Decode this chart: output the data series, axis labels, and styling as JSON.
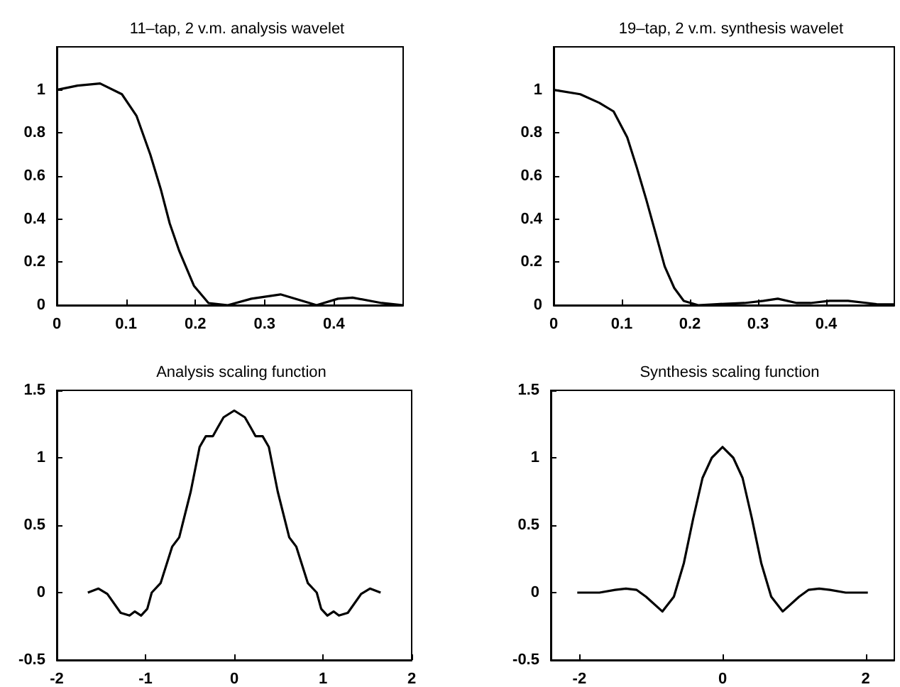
{
  "chart_data": [
    {
      "type": "line",
      "title": "11–tap, 2 v.m. analysis wavelet",
      "x": [
        0,
        0.03,
        0.0625,
        0.094,
        0.115,
        0.135,
        0.15,
        0.163,
        0.177,
        0.198,
        0.219,
        0.247,
        0.281,
        0.323,
        0.365,
        0.375,
        0.406,
        0.427,
        0.469,
        0.5
      ],
      "series": [
        {
          "color": "#000000",
          "values": [
            1,
            1.02,
            1.03,
            0.98,
            0.88,
            0.7,
            0.54,
            0.38,
            0.25,
            0.09,
            0.01,
            0,
            0.03,
            0.05,
            0.01,
            0,
            0.03,
            0.035,
            0.01,
            0
          ]
        }
      ],
      "xlim": [
        0,
        0.5
      ],
      "ylim": [
        0,
        1.2
      ],
      "xticks": [
        0,
        0.1,
        0.2,
        0.3,
        0.4
      ],
      "yticks": [
        0,
        0.2,
        0.4,
        0.6,
        0.8,
        1
      ],
      "grid": false
    },
    {
      "type": "line",
      "title": "19–tap, 2 v.m. synthesis wavelet",
      "x": [
        0,
        0.039,
        0.067,
        0.088,
        0.108,
        0.122,
        0.136,
        0.15,
        0.163,
        0.177,
        0.191,
        0.212,
        0.24,
        0.28,
        0.308,
        0.329,
        0.357,
        0.377,
        0.405,
        0.432,
        0.474,
        0.5
      ],
      "series": [
        {
          "color": "#000000",
          "values": [
            1,
            0.98,
            0.94,
            0.9,
            0.78,
            0.64,
            0.49,
            0.33,
            0.18,
            0.08,
            0.02,
            0,
            0.005,
            0.01,
            0.02,
            0.03,
            0.01,
            0.01,
            0.02,
            0.02,
            0.005,
            0.004
          ]
        }
      ],
      "xlim": [
        0,
        0.5
      ],
      "ylim": [
        0,
        1.2
      ],
      "xticks": [
        0,
        0.1,
        0.2,
        0.3,
        0.4
      ],
      "yticks": [
        0,
        0.2,
        0.4,
        0.6,
        0.8,
        1
      ],
      "grid": false
    },
    {
      "type": "line",
      "title": "Analysis scaling function",
      "x": [
        -1.65,
        -1.53,
        -1.43,
        -1.28,
        -1.18,
        -1.12,
        -1.05,
        -0.98,
        -0.93,
        -0.83,
        -0.7,
        -0.62,
        -0.49,
        -0.39,
        -0.32,
        -0.24,
        -0.19,
        -0.12,
        0,
        0.12,
        0.19,
        0.24,
        0.32,
        0.39,
        0.49,
        0.62,
        0.7,
        0.83,
        0.93,
        0.98,
        1.05,
        1.12,
        1.18,
        1.28,
        1.43,
        1.53,
        1.65
      ],
      "series": [
        {
          "color": "#000000",
          "values": [
            0,
            0.03,
            -0.01,
            -0.15,
            -0.17,
            -0.14,
            -0.17,
            -0.12,
            0,
            0.07,
            0.34,
            0.41,
            0.75,
            1.08,
            1.16,
            1.16,
            1.22,
            1.3,
            1.35,
            1.3,
            1.22,
            1.16,
            1.16,
            1.08,
            0.75,
            0.41,
            0.34,
            0.07,
            0,
            -0.12,
            -0.17,
            -0.14,
            -0.17,
            -0.15,
            -0.01,
            0.03,
            0
          ]
        }
      ],
      "xlim": [
        -2,
        2
      ],
      "ylim": [
        -0.5,
        1.5
      ],
      "xticks": [
        -2,
        -1,
        0,
        1,
        2
      ],
      "yticks": [
        -0.5,
        0,
        0.5,
        1,
        1.5
      ],
      "grid": false
    },
    {
      "type": "line",
      "title": "Synthesis scaling function",
      "x": [
        -2.03,
        -1.72,
        -1.5,
        -1.35,
        -1.2,
        -1.07,
        -0.84,
        -0.68,
        -0.54,
        -0.41,
        -0.28,
        -0.15,
        0,
        0.15,
        0.28,
        0.41,
        0.54,
        0.68,
        0.84,
        1.07,
        1.2,
        1.35,
        1.5,
        1.72,
        2.03
      ],
      "series": [
        {
          "color": "#000000",
          "values": [
            0,
            0,
            0.02,
            0.03,
            0.02,
            -0.03,
            -0.14,
            -0.03,
            0.22,
            0.55,
            0.85,
            1.0,
            1.08,
            1.0,
            0.85,
            0.55,
            0.22,
            -0.03,
            -0.14,
            -0.03,
            0.02,
            0.03,
            0.02,
            0,
            0
          ]
        }
      ],
      "xlim": [
        -2.4,
        2.4
      ],
      "ylim": [
        -0.5,
        1.5
      ],
      "xticks": [
        -2,
        0,
        2
      ],
      "yticks": [
        -0.5,
        0,
        0.5,
        1,
        1.5
      ],
      "grid": false
    }
  ]
}
